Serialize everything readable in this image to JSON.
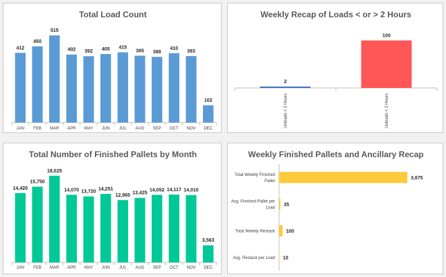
{
  "chart_data": [
    {
      "id": "load-count",
      "type": "bar",
      "title": "Total Load Count",
      "color": "#5b9bd5",
      "categories": [
        "JAN",
        "FEB",
        "MAR",
        "APR",
        "MAY",
        "JUN",
        "JUL",
        "AUG",
        "SEP",
        "OCT",
        "NOV",
        "DEC"
      ],
      "values": [
        412,
        450,
        515,
        402,
        392,
        405,
        415,
        395,
        388,
        410,
        393,
        102
      ],
      "labels": [
        "412",
        "450",
        "515",
        "402",
        "392",
        "405",
        "415",
        "395",
        "388",
        "410",
        "393",
        "102"
      ],
      "ylim": [
        0,
        540
      ]
    },
    {
      "id": "weekly-recap",
      "type": "bar",
      "title": "Weekly Recap of Loads < or > 2 Hours",
      "colors": [
        "#4472c4",
        "#ff5757"
      ],
      "categories": [
        "Unloads > 2 Hours",
        "Unloads < 2 Hours"
      ],
      "values": [
        2,
        100
      ],
      "labels": [
        "2",
        "100"
      ],
      "ylim": [
        0,
        105
      ]
    },
    {
      "id": "finished-pallets",
      "type": "bar",
      "title": "Total Number of Finished Pallets by Month",
      "color": "#00c896",
      "categories": [
        "JAN",
        "FEB",
        "MAR",
        "APR",
        "MAY",
        "JUN",
        "JUL",
        "AUG",
        "SEP",
        "OCT",
        "NOV",
        "DEC"
      ],
      "values": [
        14420,
        15750,
        18025,
        14070,
        13720,
        14251,
        12965,
        13425,
        14052,
        14117,
        14010,
        3563
      ],
      "labels": [
        "14,420",
        "15,750",
        "18,025",
        "14,070",
        "13,720",
        "14,251",
        "12,965",
        "13,425",
        "14,052",
        "14,117",
        "14,010",
        "3,563"
      ],
      "ylim": [
        0,
        19000
      ]
    },
    {
      "id": "ancillary-recap",
      "type": "bar",
      "orientation": "horizontal",
      "title": "Weekly Finished Pallets and Ancillary Recap",
      "color": "#ffc93c",
      "categories": [
        [
          "Total Weekly Finished",
          "Pallet"
        ],
        [
          "Avg. Finished Pallet per",
          "Load"
        ],
        [
          "Total Weekly Restack"
        ],
        [
          "Avg. Restack per Load"
        ]
      ],
      "values": [
        3675,
        35,
        100,
        10
      ],
      "labels": [
        "3,675",
        "35",
        "100",
        "10"
      ],
      "xlim": [
        0,
        3850
      ]
    }
  ]
}
